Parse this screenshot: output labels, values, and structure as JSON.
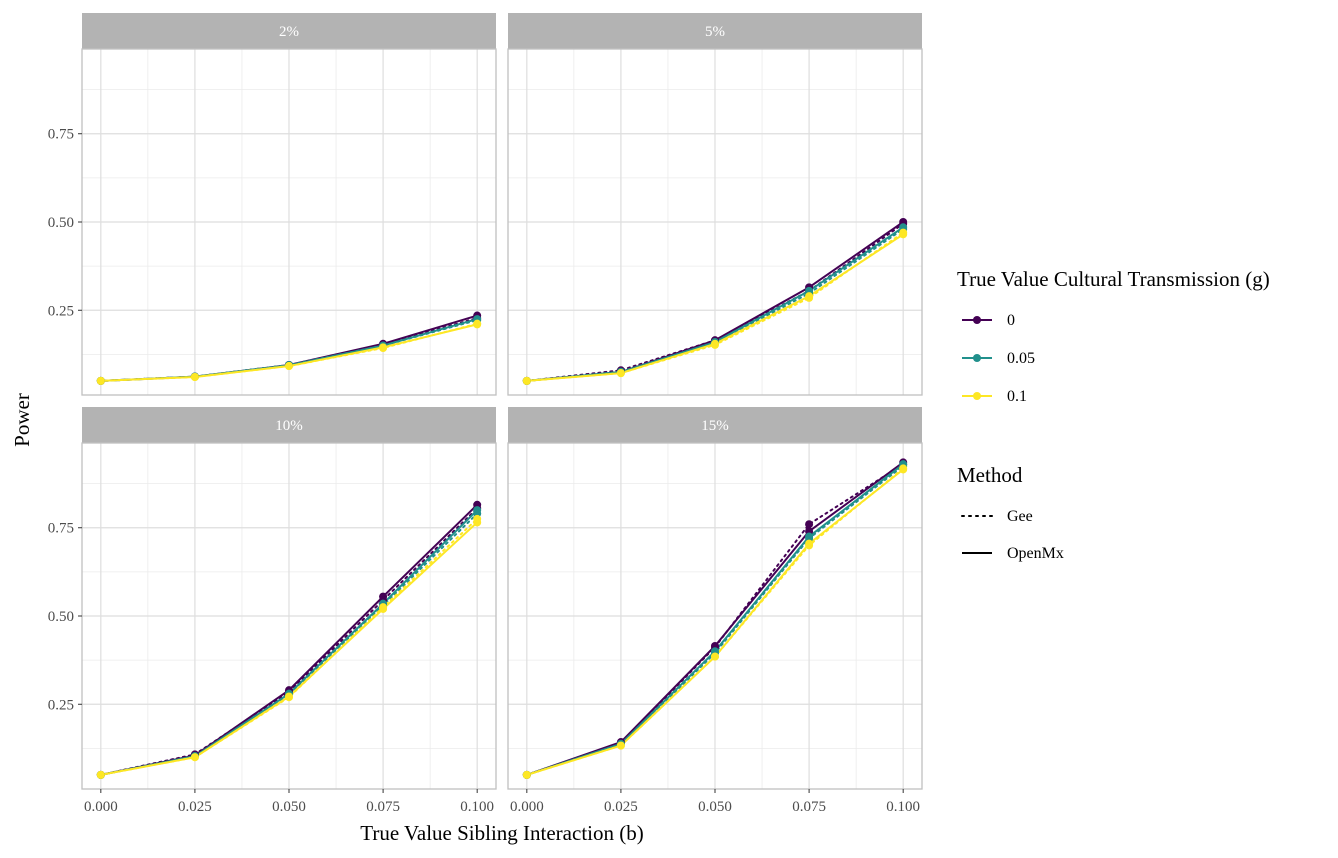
{
  "chart_data": {
    "type": "line",
    "xlabel": "True Value Sibling Interaction (b)",
    "ylabel": "Power",
    "x": [
      0.0,
      0.025,
      0.05,
      0.075,
      0.1
    ],
    "x_tick_labels": [
      "0.000",
      "0.025",
      "0.050",
      "0.075",
      "0.100"
    ],
    "y_tick_labels": [
      "0.25",
      "0.50",
      "0.75"
    ],
    "y_ticks": [
      0.25,
      0.5,
      0.75
    ],
    "xlim": [
      -0.005,
      0.105
    ],
    "ylim": [
      0.01,
      0.99
    ],
    "grid": true,
    "legend_position": "right",
    "colors": {
      "0": "#440154",
      "0.05": "#21908C",
      "0.1": "#FDE725"
    },
    "color_legend": {
      "title": "True Value Cultural Transmission (g)",
      "entries": [
        "0",
        "0.05",
        "0.1"
      ]
    },
    "linetype_legend": {
      "title": "Method",
      "entries": [
        {
          "label": "Gee",
          "style": "dotted"
        },
        {
          "label": "OpenMx",
          "style": "solid"
        }
      ]
    },
    "panels": [
      {
        "strip": "2%",
        "series": [
          {
            "g": "0",
            "method": "OpenMx",
            "values": [
              0.05,
              0.062,
              0.095,
              0.155,
              0.235
            ]
          },
          {
            "g": "0",
            "method": "Gee",
            "values": [
              0.05,
              0.062,
              0.095,
              0.152,
              0.228
            ]
          },
          {
            "g": "0.05",
            "method": "OpenMx",
            "values": [
              0.05,
              0.062,
              0.094,
              0.15,
              0.225
            ]
          },
          {
            "g": "0.05",
            "method": "Gee",
            "values": [
              0.05,
              0.062,
              0.095,
              0.15,
              0.222
            ]
          },
          {
            "g": "0.1",
            "method": "OpenMx",
            "values": [
              0.05,
              0.061,
              0.092,
              0.145,
              0.21
            ]
          },
          {
            "g": "0.1",
            "method": "Gee",
            "values": [
              0.05,
              0.061,
              0.092,
              0.143,
              0.212
            ]
          }
        ]
      },
      {
        "strip": "5%",
        "series": [
          {
            "g": "0",
            "method": "OpenMx",
            "values": [
              0.05,
              0.075,
              0.165,
              0.315,
              0.5
            ]
          },
          {
            "g": "0",
            "method": "Gee",
            "values": [
              0.05,
              0.08,
              0.165,
              0.305,
              0.495
            ]
          },
          {
            "g": "0.05",
            "method": "OpenMx",
            "values": [
              0.05,
              0.075,
              0.16,
              0.305,
              0.485
            ]
          },
          {
            "g": "0.05",
            "method": "Gee",
            "values": [
              0.05,
              0.076,
              0.158,
              0.298,
              0.48
            ]
          },
          {
            "g": "0.1",
            "method": "OpenMx",
            "values": [
              0.05,
              0.072,
              0.155,
              0.29,
              0.465
            ]
          },
          {
            "g": "0.1",
            "method": "Gee",
            "values": [
              0.05,
              0.072,
              0.152,
              0.285,
              0.47
            ]
          }
        ]
      },
      {
        "strip": "10%",
        "series": [
          {
            "g": "0",
            "method": "OpenMx",
            "values": [
              0.05,
              0.105,
              0.29,
              0.555,
              0.815
            ]
          },
          {
            "g": "0",
            "method": "Gee",
            "values": [
              0.05,
              0.108,
              0.285,
              0.545,
              0.805
            ]
          },
          {
            "g": "0.05",
            "method": "OpenMx",
            "values": [
              0.05,
              0.103,
              0.28,
              0.535,
              0.8
            ]
          },
          {
            "g": "0.05",
            "method": "Gee",
            "values": [
              0.05,
              0.103,
              0.278,
              0.53,
              0.79
            ]
          },
          {
            "g": "0.1",
            "method": "OpenMx",
            "values": [
              0.05,
              0.1,
              0.272,
              0.52,
              0.765
            ]
          },
          {
            "g": "0.1",
            "method": "Gee",
            "values": [
              0.05,
              0.1,
              0.27,
              0.525,
              0.775
            ]
          }
        ]
      },
      {
        "strip": "15%",
        "series": [
          {
            "g": "0",
            "method": "OpenMx",
            "values": [
              0.05,
              0.143,
              0.415,
              0.74,
              0.935
            ]
          },
          {
            "g": "0",
            "method": "Gee",
            "values": [
              0.05,
              0.14,
              0.412,
              0.76,
              0.93
            ]
          },
          {
            "g": "0.05",
            "method": "OpenMx",
            "values": [
              0.05,
              0.138,
              0.4,
              0.725,
              0.93
            ]
          },
          {
            "g": "0.05",
            "method": "Gee",
            "values": [
              0.05,
              0.136,
              0.395,
              0.72,
              0.925
            ]
          },
          {
            "g": "0.1",
            "method": "OpenMx",
            "values": [
              0.05,
              0.133,
              0.385,
              0.705,
              0.915
            ]
          },
          {
            "g": "0.1",
            "method": "Gee",
            "values": [
              0.05,
              0.133,
              0.385,
              0.7,
              0.918
            ]
          }
        ]
      }
    ]
  }
}
